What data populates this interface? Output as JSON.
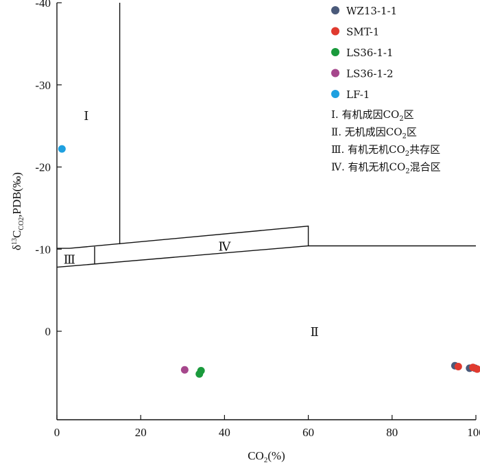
{
  "chart_data": {
    "type": "scatter",
    "xlabel_main": "CO",
    "xlabel_sub": "2",
    "xlabel_tail": "(%)",
    "ylabel_parts": {
      "delta": "δ",
      "sup": "13",
      "c": "C",
      "sub": "CO2",
      "tail": ",PDB(‰)"
    },
    "xlim": [
      0,
      100
    ],
    "ylim": [
      15,
      -40
    ],
    "y_inverted": true,
    "x_ticks": [
      {
        "value": 0,
        "label": "0"
      },
      {
        "value": 20,
        "label": "20"
      },
      {
        "value": 40,
        "label": "40"
      },
      {
        "value": 60,
        "label": "60"
      },
      {
        "value": 80,
        "label": "80"
      },
      {
        "value": 100,
        "label": "100"
      }
    ],
    "y_ticks": [
      {
        "value": -40,
        "label": "-40"
      },
      {
        "value": -30,
        "label": "-30"
      },
      {
        "value": -20,
        "label": "-20"
      },
      {
        "value": -10,
        "label": "-10"
      },
      {
        "value": 0,
        "label": "0"
      }
    ],
    "boundaries": [
      {
        "points": [
          [
            15,
            -40
          ],
          [
            15,
            -10.6
          ]
        ]
      },
      {
        "points": [
          [
            0,
            -7.8
          ],
          [
            60,
            -10.4
          ],
          [
            60,
            -12.8
          ],
          [
            3,
            -10.1
          ],
          [
            0,
            -10.1
          ]
        ]
      },
      {
        "points": [
          [
            9,
            -8.2
          ],
          [
            9,
            -10.3
          ]
        ]
      },
      {
        "points": [
          [
            60,
            -10.4
          ],
          [
            100,
            -10.4
          ]
        ]
      }
    ],
    "regions": [
      {
        "label": "I",
        "x": 7,
        "y": -26.3
      },
      {
        "label": "II",
        "x": 61.5,
        "y": 0
      },
      {
        "label": "III",
        "x": 3,
        "y": -8.8
      },
      {
        "label": "IV",
        "x": 40,
        "y": -10.4
      }
    ],
    "series": [
      {
        "name": "WZ13-1-1",
        "color": "#4a5a7a",
        "points": [
          [
            95,
            4.2
          ],
          [
            98.5,
            4.5
          ],
          [
            99.8,
            4.5
          ]
        ]
      },
      {
        "name": "SMT-1",
        "color": "#e03a2f",
        "points": [
          [
            95.8,
            4.3
          ],
          [
            99.3,
            4.4
          ],
          [
            100.3,
            4.6
          ]
        ]
      },
      {
        "name": "LS36-1-1",
        "color": "#1a9a3c",
        "points": [
          [
            34,
            5.2
          ],
          [
            34.4,
            4.8
          ]
        ]
      },
      {
        "name": "LS36-1-2",
        "color": "#a6478c",
        "points": [
          [
            30.5,
            4.7
          ]
        ]
      },
      {
        "name": "LF-1",
        "color": "#1ea0e0",
        "points": [
          [
            1.2,
            -22.2
          ]
        ]
      }
    ],
    "notes": [
      {
        "num": "Ⅰ. ",
        "text": "有机成因CO",
        "sub": "2",
        "tail": "区"
      },
      {
        "num": "Ⅱ. ",
        "text": "无机成因CO",
        "sub": "2",
        "tail": "区"
      },
      {
        "num": "Ⅲ. ",
        "text": "有机无机CO",
        "sub": "2",
        "tail": "共存区"
      },
      {
        "num": "Ⅳ. ",
        "text": "有机无机CO",
        "sub": "2",
        "tail": "混合区"
      }
    ],
    "legend_position": "top-right"
  }
}
